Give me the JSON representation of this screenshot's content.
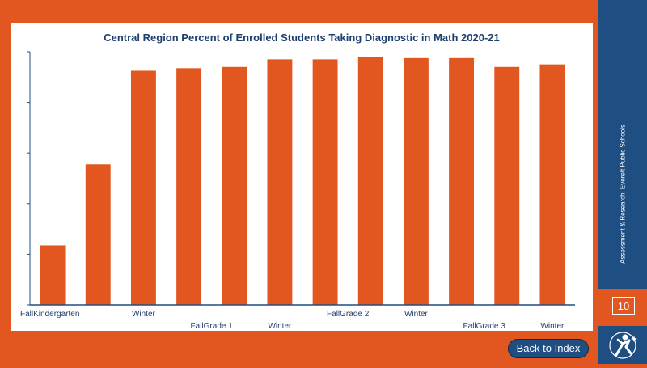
{
  "chart_data": {
    "type": "bar",
    "title": "Central Region Percent of Enrolled Students Taking Diagnostic in Math 2020-21",
    "xlabel": "",
    "ylabel": "",
    "ylim": [
      0,
      100
    ],
    "grid": false,
    "categories": [
      "",
      "",
      "",
      "",
      "",
      "",
      "",
      "",
      "",
      "",
      "",
      ""
    ],
    "values": [
      23.5,
      55.5,
      92.5,
      93.5,
      94,
      97,
      97,
      98,
      97.5,
      97.5,
      94,
      95
    ],
    "tick_labels": [
      {
        "text": "FallKindergarten",
        "index": 0,
        "row": 0,
        "align": "start"
      },
      {
        "text": "Winter",
        "index": 2,
        "row": 0,
        "align": "middle"
      },
      {
        "text": "FallGrade 1",
        "index": 3.5,
        "row": 1,
        "align": "middle"
      },
      {
        "text": "Winter",
        "index": 5,
        "row": 1,
        "align": "middle"
      },
      {
        "text": "FallGrade 2",
        "index": 6.5,
        "row": 0,
        "align": "middle"
      },
      {
        "text": "Winter",
        "index": 8,
        "row": 0,
        "align": "middle"
      },
      {
        "text": "FallGrade 3",
        "index": 9.5,
        "row": 1,
        "align": "middle"
      },
      {
        "text": "Winter",
        "index": 11,
        "row": 1,
        "align": "middle"
      }
    ],
    "bar_color": "#E2561F",
    "axis_color": "#1F4E82"
  },
  "sidebar": {
    "vertical_text": "Assessment & Research| Everett Public Schools",
    "page_number": "10"
  },
  "nav": {
    "back_label": "Back to Index"
  },
  "colors": {
    "background": "#E2561F",
    "navy": "#1F4E82",
    "title": "#1F3F6E"
  }
}
